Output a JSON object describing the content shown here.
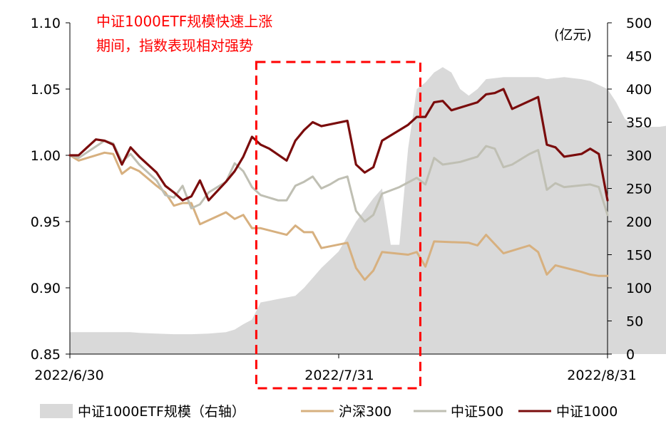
{
  "chart_data": {
    "type": "line",
    "annotation": [
      "中证1000ETF规模快速上涨",
      "期间，指数表现相对强势"
    ],
    "unit_label": "(亿元)",
    "x_tick_labels": [
      "2022/6/30",
      "2022/7/31",
      "2022/8/31"
    ],
    "y_left": {
      "ylim": [
        0.85,
        1.1
      ],
      "ticks": [
        "0.85",
        "0.90",
        "0.95",
        "1.00",
        "1.05",
        "1.10"
      ]
    },
    "y_right": {
      "ylim": [
        0,
        500
      ],
      "ticks": [
        "0",
        "50",
        "100",
        "150",
        "200",
        "250",
        "300",
        "350",
        "400",
        "450",
        "500"
      ]
    },
    "grid": false,
    "legend_position": "bottom",
    "highlight_period": {
      "from_day": 21,
      "to_day": 40
    },
    "colors": {
      "area": "#d9d9d9",
      "hs300": "#d7b07f",
      "csi500": "#bfbfb3",
      "csi1000": "#7a0c0c",
      "highlight": "#ff0000"
    },
    "series": [
      {
        "name": "中证1000ETF规模（右轴）",
        "axis": "right",
        "kind": "area",
        "points": [
          [
            0,
            33
          ],
          [
            2,
            33
          ],
          [
            4,
            33
          ],
          [
            6,
            33
          ],
          [
            7,
            33
          ],
          [
            8,
            32
          ],
          [
            10,
            31
          ],
          [
            12,
            30
          ],
          [
            14,
            30
          ],
          [
            16,
            31
          ],
          [
            18,
            33
          ],
          [
            19,
            37
          ],
          [
            20,
            45
          ],
          [
            21,
            52
          ],
          [
            22,
            78
          ],
          [
            24,
            83
          ],
          [
            26,
            88
          ],
          [
            27,
            100
          ],
          [
            28,
            115
          ],
          [
            29,
            130
          ],
          [
            31,
            155
          ],
          [
            33,
            200
          ],
          [
            35,
            235
          ],
          [
            36,
            250
          ],
          [
            37,
            165
          ],
          [
            38,
            165
          ],
          [
            39,
            310
          ],
          [
            40,
            400
          ],
          [
            41,
            410
          ],
          [
            42,
            425
          ],
          [
            43,
            433
          ],
          [
            44,
            425
          ],
          [
            45,
            400
          ],
          [
            46,
            390
          ],
          [
            47,
            400
          ],
          [
            48,
            415
          ],
          [
            50,
            418
          ],
          [
            52,
            418
          ],
          [
            54,
            418
          ],
          [
            55,
            415
          ],
          [
            57,
            418
          ],
          [
            59,
            415
          ],
          [
            60,
            412
          ],
          [
            62,
            400
          ],
          [
            63,
            380
          ],
          [
            64,
            355
          ],
          [
            65,
            345
          ],
          [
            66,
            343
          ],
          [
            68,
            343
          ],
          [
            69,
            345
          ],
          [
            70,
            355
          ],
          [
            71,
            358
          ]
        ]
      },
      {
        "name": "沪深300",
        "axis": "left",
        "kind": "line",
        "points": [
          [
            0,
            1.0
          ],
          [
            1,
            0.996
          ],
          [
            4,
            1.002
          ],
          [
            5,
            1.001
          ],
          [
            6,
            0.986
          ],
          [
            7,
            0.991
          ],
          [
            8,
            0.988
          ],
          [
            10,
            0.977
          ],
          [
            11,
            0.972
          ],
          [
            12,
            0.962
          ],
          [
            13,
            0.964
          ],
          [
            14,
            0.964
          ],
          [
            15,
            0.948
          ],
          [
            18,
            0.957
          ],
          [
            19,
            0.952
          ],
          [
            20,
            0.955
          ],
          [
            21,
            0.945
          ],
          [
            22,
            0.945
          ],
          [
            25,
            0.94
          ],
          [
            26,
            0.947
          ],
          [
            27,
            0.942
          ],
          [
            28,
            0.942
          ],
          [
            29,
            0.93
          ],
          [
            32,
            0.934
          ],
          [
            33,
            0.915
          ],
          [
            34,
            0.906
          ],
          [
            35,
            0.913
          ],
          [
            36,
            0.927
          ],
          [
            39,
            0.925
          ],
          [
            40,
            0.927
          ],
          [
            41,
            0.916
          ],
          [
            42,
            0.935
          ],
          [
            46,
            0.934
          ],
          [
            47,
            0.932
          ],
          [
            48,
            0.94
          ],
          [
            50,
            0.926
          ],
          [
            53,
            0.932
          ],
          [
            54,
            0.927
          ],
          [
            55,
            0.91
          ],
          [
            56,
            0.917
          ],
          [
            59,
            0.912
          ],
          [
            60,
            0.91
          ],
          [
            61,
            0.909
          ],
          [
            62,
            0.909
          ]
        ]
      },
      {
        "name": "中证500",
        "axis": "left",
        "kind": "line",
        "points": [
          [
            0,
            1.0
          ],
          [
            1,
            0.998
          ],
          [
            4,
            1.011
          ],
          [
            5,
            1.009
          ],
          [
            6,
            0.995
          ],
          [
            7,
            1.001
          ],
          [
            8,
            0.993
          ],
          [
            10,
            0.981
          ],
          [
            11,
            0.97
          ],
          [
            12,
            0.968
          ],
          [
            13,
            0.977
          ],
          [
            14,
            0.96
          ],
          [
            15,
            0.963
          ],
          [
            16,
            0.972
          ],
          [
            18,
            0.98
          ],
          [
            19,
            0.994
          ],
          [
            20,
            0.988
          ],
          [
            21,
            0.976
          ],
          [
            22,
            0.97
          ],
          [
            24,
            0.966
          ],
          [
            25,
            0.966
          ],
          [
            26,
            0.977
          ],
          [
            27,
            0.98
          ],
          [
            28,
            0.984
          ],
          [
            29,
            0.975
          ],
          [
            30,
            0.978
          ],
          [
            31,
            0.982
          ],
          [
            32,
            0.984
          ],
          [
            33,
            0.958
          ],
          [
            34,
            0.95
          ],
          [
            35,
            0.955
          ],
          [
            36,
            0.971
          ],
          [
            38,
            0.976
          ],
          [
            40,
            0.983
          ],
          [
            41,
            0.978
          ],
          [
            42,
            0.998
          ],
          [
            43,
            0.993
          ],
          [
            45,
            0.995
          ],
          [
            47,
            0.999
          ],
          [
            48,
            1.007
          ],
          [
            49,
            1.005
          ],
          [
            50,
            0.991
          ],
          [
            51,
            0.993
          ],
          [
            53,
            1.001
          ],
          [
            54,
            1.004
          ],
          [
            55,
            0.974
          ],
          [
            56,
            0.979
          ],
          [
            57,
            0.976
          ],
          [
            60,
            0.978
          ],
          [
            61,
            0.976
          ],
          [
            62,
            0.955
          ]
        ]
      },
      {
        "name": "中证1000",
        "axis": "left",
        "kind": "line",
        "points": [
          [
            0,
            1.0
          ],
          [
            1,
            1.0
          ],
          [
            2,
            1.006
          ],
          [
            3,
            1.012
          ],
          [
            4,
            1.011
          ],
          [
            5,
            1.008
          ],
          [
            6,
            0.993
          ],
          [
            7,
            1.006
          ],
          [
            8,
            0.999
          ],
          [
            10,
            0.987
          ],
          [
            11,
            0.977
          ],
          [
            12,
            0.972
          ],
          [
            13,
            0.966
          ],
          [
            14,
            0.969
          ],
          [
            15,
            0.981
          ],
          [
            16,
            0.966
          ],
          [
            18,
            0.98
          ],
          [
            19,
            0.988
          ],
          [
            20,
            0.999
          ],
          [
            21,
            1.014
          ],
          [
            22,
            1.008
          ],
          [
            23,
            1.005
          ],
          [
            25,
            0.996
          ],
          [
            26,
            1.011
          ],
          [
            27,
            1.019
          ],
          [
            28,
            1.025
          ],
          [
            29,
            1.022
          ],
          [
            32,
            1.026
          ],
          [
            33,
            0.993
          ],
          [
            34,
            0.987
          ],
          [
            35,
            0.991
          ],
          [
            36,
            1.011
          ],
          [
            39,
            1.023
          ],
          [
            40,
            1.029
          ],
          [
            41,
            1.029
          ],
          [
            42,
            1.04
          ],
          [
            43,
            1.041
          ],
          [
            44,
            1.034
          ],
          [
            47,
            1.04
          ],
          [
            48,
            1.046
          ],
          [
            49,
            1.047
          ],
          [
            50,
            1.05
          ],
          [
            51,
            1.035
          ],
          [
            54,
            1.044
          ],
          [
            55,
            1.008
          ],
          [
            56,
            1.006
          ],
          [
            57,
            0.999
          ],
          [
            59,
            1.001
          ],
          [
            60,
            1.005
          ],
          [
            61,
            1.001
          ],
          [
            62,
            0.966
          ]
        ]
      }
    ]
  }
}
